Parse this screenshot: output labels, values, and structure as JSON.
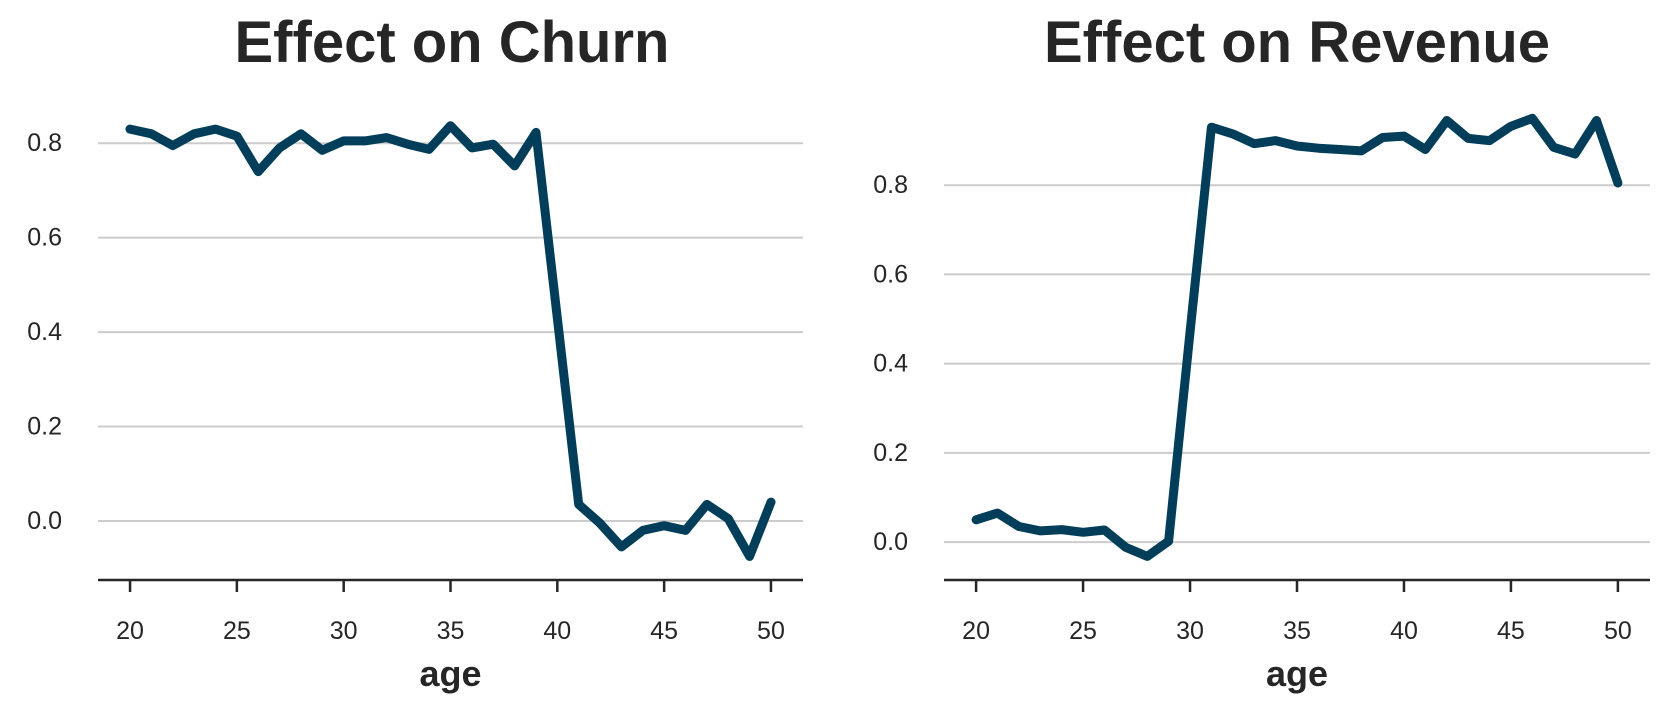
{
  "chart_data": [
    {
      "type": "line",
      "title": "Effect on Churn",
      "xlabel": "age",
      "ylabel": "",
      "xlim": [
        18.5,
        51.5
      ],
      "ylim": [
        -0.125,
        0.9
      ],
      "xticks": [
        20,
        25,
        30,
        35,
        40,
        45,
        50
      ],
      "yticks": [
        0.0,
        0.2,
        0.4,
        0.6,
        0.8
      ],
      "ytick_labels": [
        "0.0",
        "0.2",
        "0.4",
        "0.6",
        "0.8"
      ],
      "grid": "horizontal",
      "color": "#023e5a",
      "x": [
        20,
        21,
        22,
        23,
        24,
        25,
        26,
        27,
        28,
        29,
        30,
        31,
        32,
        33,
        34,
        35,
        36,
        37,
        38,
        39,
        40,
        41,
        42,
        43,
        44,
        45,
        46,
        47,
        48,
        49,
        50
      ],
      "y": [
        0.83,
        0.82,
        0.795,
        0.82,
        0.83,
        0.815,
        0.74,
        0.79,
        0.82,
        0.785,
        0.805,
        0.805,
        0.812,
        0.798,
        0.787,
        0.837,
        0.79,
        0.798,
        0.752,
        0.823,
        0.43,
        0.035,
        -0.005,
        -0.055,
        -0.02,
        -0.01,
        -0.02,
        0.035,
        0.005,
        -0.075,
        0.04
      ]
    },
    {
      "type": "line",
      "title": "Effect on Revenue",
      "xlabel": "age",
      "ylabel": "",
      "xlim": [
        18.5,
        51.5
      ],
      "ylim": [
        -0.085,
        1.0
      ],
      "xticks": [
        20,
        25,
        30,
        35,
        40,
        45,
        50
      ],
      "yticks": [
        0.0,
        0.2,
        0.4,
        0.6,
        0.8
      ],
      "ytick_labels": [
        "0.0",
        "0.2",
        "0.4",
        "0.6",
        "0.8"
      ],
      "grid": "horizontal",
      "color": "#023e5a",
      "x": [
        20,
        21,
        22,
        23,
        24,
        25,
        26,
        27,
        28,
        29,
        30,
        31,
        32,
        33,
        34,
        35,
        36,
        37,
        38,
        39,
        40,
        41,
        42,
        43,
        44,
        45,
        46,
        47,
        48,
        49,
        50
      ],
      "y": [
        0.05,
        0.065,
        0.035,
        0.025,
        0.028,
        0.022,
        0.027,
        -0.012,
        -0.032,
        0.002,
        0.47,
        0.93,
        0.915,
        0.893,
        0.9,
        0.888,
        0.883,
        0.88,
        0.877,
        0.907,
        0.91,
        0.88,
        0.945,
        0.905,
        0.9,
        0.932,
        0.95,
        0.885,
        0.87,
        0.945,
        0.805
      ]
    }
  ]
}
